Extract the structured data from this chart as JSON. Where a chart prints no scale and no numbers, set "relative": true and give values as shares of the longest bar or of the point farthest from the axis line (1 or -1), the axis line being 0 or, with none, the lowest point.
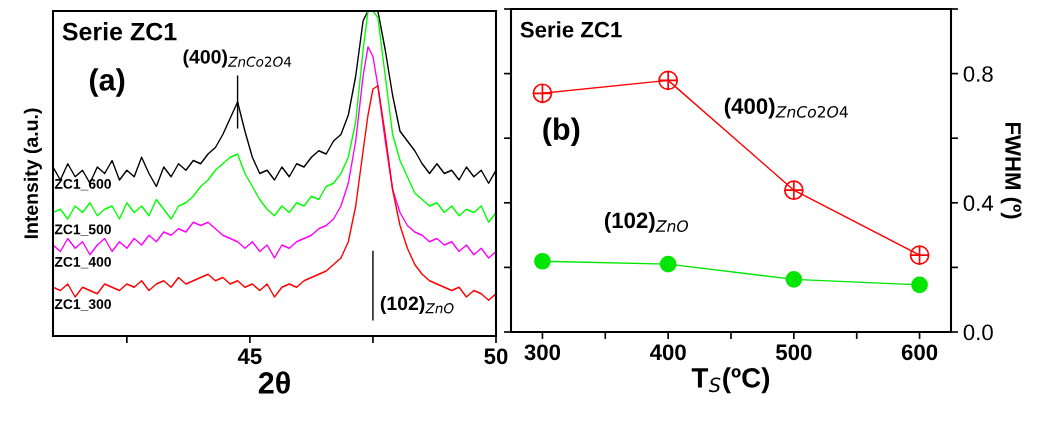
{
  "chart_data": [
    {
      "type": "line",
      "relative": true,
      "xlabel": "2θ",
      "ylabel": "Intensity (a.u.)",
      "xlim": [
        41,
        50
      ],
      "xticks": [
        {
          "value": 42.5,
          "label": null
        },
        45,
        {
          "value": 47.5,
          "label": null
        },
        50
      ],
      "tick_labels": "x",
      "marker": "none",
      "grid": false,
      "legend": false,
      "annotations": [
        "Serie ZC1",
        "(a)",
        {
          "text": "(400)$_{ZnCo2O4}$",
          "x": 44.75,
          "y": 0.72
        }
      ],
      "ref_lines": [
        {
          "axis": "x",
          "value": 47.5,
          "label": "(102)$_{ZnO}$",
          "color": "#000000"
        }
      ],
      "x": [
        41.0,
        41.15,
        41.3,
        41.45,
        41.6,
        41.75,
        41.9,
        42.05,
        42.2,
        42.35,
        42.5,
        42.65,
        42.8,
        42.95,
        43.1,
        43.25,
        43.4,
        43.55,
        43.7,
        43.85,
        44.0,
        44.15,
        44.3,
        44.45,
        44.6,
        44.75,
        44.9,
        45.05,
        45.2,
        45.35,
        45.5,
        45.65,
        45.8,
        45.95,
        46.1,
        46.25,
        46.4,
        46.55,
        46.7,
        46.85,
        47.0,
        47.15,
        47.3,
        47.4,
        47.5,
        47.6,
        47.75,
        47.9,
        48.05,
        48.2,
        48.35,
        48.5,
        48.65,
        48.8,
        48.95,
        49.1,
        49.25,
        49.4,
        49.55,
        49.7,
        49.85,
        50.0
      ],
      "series": [
        {
          "name": "ZC1_600",
          "color": "#000000",
          "values": [
            0.52,
            0.48,
            0.53,
            0.49,
            0.51,
            0.47,
            0.52,
            0.5,
            0.54,
            0.48,
            0.51,
            0.49,
            0.55,
            0.5,
            0.46,
            0.52,
            0.49,
            0.53,
            0.51,
            0.54,
            0.53,
            0.56,
            0.58,
            0.62,
            0.67,
            0.72,
            0.63,
            0.55,
            0.5,
            0.51,
            0.48,
            0.52,
            0.49,
            0.53,
            0.52,
            0.55,
            0.57,
            0.56,
            0.6,
            0.62,
            0.68,
            0.8,
            0.97,
            1.0,
            1.0,
            1.0,
            0.88,
            0.74,
            0.63,
            0.6,
            0.57,
            0.53,
            0.5,
            0.53,
            0.5,
            0.51,
            0.48,
            0.52,
            0.49,
            0.51,
            0.47,
            0.51
          ]
        },
        {
          "name": "ZC1_500",
          "color": "#00ff00",
          "values": [
            0.38,
            0.39,
            0.36,
            0.4,
            0.38,
            0.41,
            0.37,
            0.39,
            0.4,
            0.36,
            0.41,
            0.38,
            0.4,
            0.37,
            0.42,
            0.39,
            0.36,
            0.4,
            0.41,
            0.43,
            0.46,
            0.48,
            0.51,
            0.53,
            0.55,
            0.56,
            0.5,
            0.46,
            0.42,
            0.39,
            0.37,
            0.4,
            0.38,
            0.41,
            0.4,
            0.43,
            0.42,
            0.46,
            0.47,
            0.5,
            0.55,
            0.66,
            0.88,
            1.0,
            1.0,
            0.98,
            0.8,
            0.62,
            0.54,
            0.49,
            0.44,
            0.42,
            0.4,
            0.41,
            0.38,
            0.4,
            0.37,
            0.39,
            0.38,
            0.4,
            0.35,
            0.38
          ]
        },
        {
          "name": "ZC1_400",
          "color": "#ff00ff",
          "values": [
            0.28,
            0.26,
            0.3,
            0.27,
            0.29,
            0.25,
            0.28,
            0.3,
            0.26,
            0.29,
            0.27,
            0.3,
            0.28,
            0.31,
            0.29,
            0.32,
            0.31,
            0.33,
            0.32,
            0.35,
            0.34,
            0.35,
            0.33,
            0.31,
            0.3,
            0.29,
            0.27,
            0.29,
            0.26,
            0.28,
            0.24,
            0.28,
            0.27,
            0.29,
            0.3,
            0.31,
            0.33,
            0.34,
            0.36,
            0.4,
            0.47,
            0.6,
            0.8,
            0.89,
            0.86,
            0.77,
            0.6,
            0.45,
            0.38,
            0.34,
            0.32,
            0.31,
            0.29,
            0.3,
            0.28,
            0.29,
            0.26,
            0.28,
            0.25,
            0.27,
            0.24,
            0.26
          ]
        },
        {
          "name": "ZC1_300",
          "color": "#ff0000",
          "values": [
            0.15,
            0.14,
            0.16,
            0.12,
            0.15,
            0.14,
            0.13,
            0.16,
            0.15,
            0.14,
            0.16,
            0.15,
            0.17,
            0.14,
            0.16,
            0.17,
            0.15,
            0.18,
            0.16,
            0.17,
            0.18,
            0.19,
            0.17,
            0.18,
            0.16,
            0.17,
            0.15,
            0.16,
            0.14,
            0.16,
            0.12,
            0.15,
            0.16,
            0.15,
            0.17,
            0.18,
            0.19,
            0.2,
            0.22,
            0.24,
            0.29,
            0.4,
            0.57,
            0.68,
            0.76,
            0.77,
            0.62,
            0.45,
            0.34,
            0.27,
            0.22,
            0.19,
            0.17,
            0.16,
            0.15,
            0.14,
            0.15,
            0.12,
            0.14,
            0.13,
            0.11,
            0.13
          ]
        }
      ]
    },
    {
      "type": "line",
      "xlabel": "T$_{S}$(ºC)",
      "ylabel": "FWHM (º)",
      "xlim": [
        275,
        625
      ],
      "xticks": [
        300,
        {
          "value": 350,
          "label": null
        },
        400,
        {
          "value": 450,
          "label": null
        },
        500,
        {
          "value": 550,
          "label": null
        },
        600
      ],
      "ylim": [
        0,
        1.0
      ],
      "yticks": [
        {
          "value": 0,
          "label": "0.0"
        },
        {
          "value": 0.2,
          "label": null
        },
        0.4,
        {
          "value": 0.6,
          "label": null
        },
        0.8,
        {
          "value": 1.0,
          "label": null
        }
      ],
      "grid": false,
      "legend": false,
      "line_style": "solid",
      "annotations": [
        "Serie ZC1",
        "(b)"
      ],
      "x": [
        300,
        400,
        500,
        600
      ],
      "series": [
        {
          "name": "(400)$_{ZnCo2O4}$",
          "color": "#ff0000",
          "marker": "cross",
          "values": [
            0.739,
            0.779,
            0.439,
            0.238
          ]
        },
        {
          "name": "(102)$_{ZnO}$",
          "color": "#00e600",
          "marker": "circle",
          "values": [
            0.219,
            0.21,
            0.163,
            0.146
          ]
        }
      ]
    }
  ]
}
